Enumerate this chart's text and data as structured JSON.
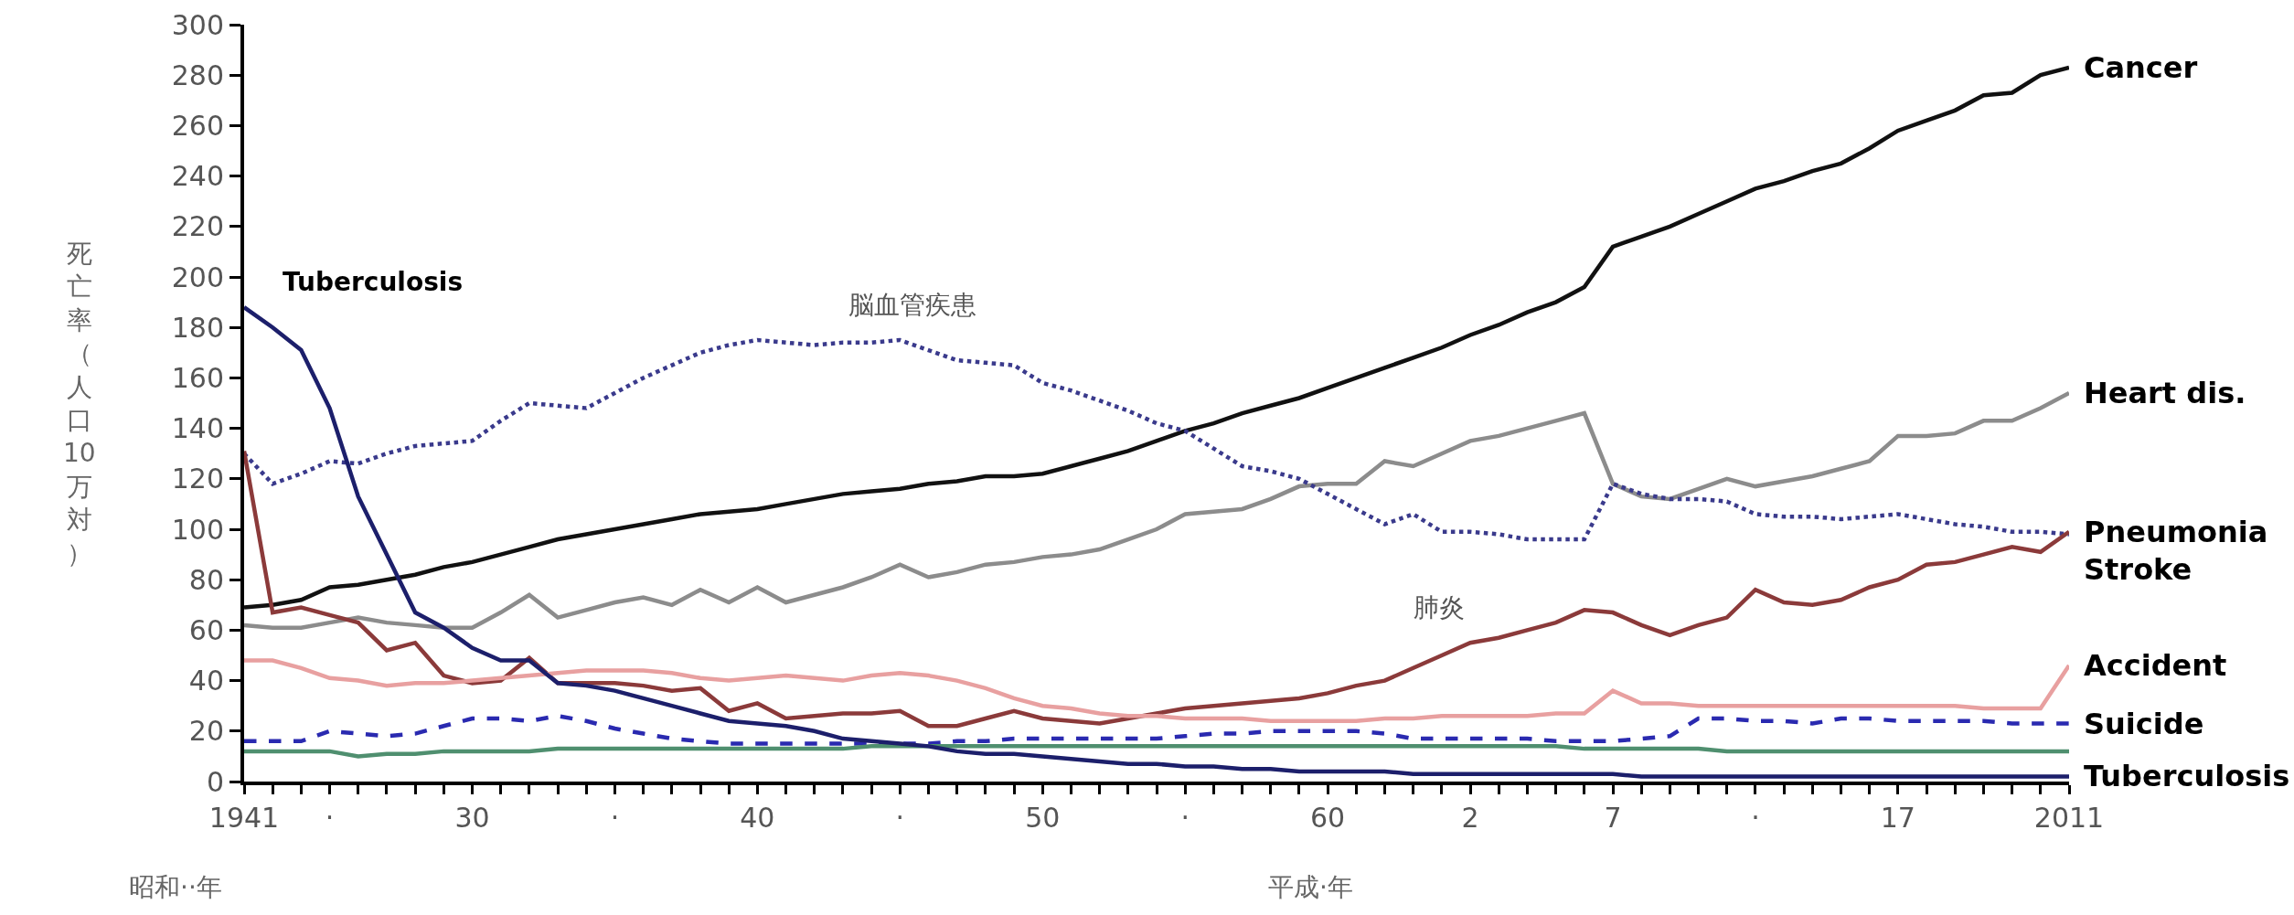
{
  "chart_data": {
    "type": "line",
    "ylabel": "死亡率（人口10万対）",
    "legend": false,
    "categories": [
      "1941",
      null,
      null,
      "·",
      null,
      null,
      null,
      null,
      "30",
      null,
      null,
      null,
      null,
      "·",
      null,
      null,
      null,
      null,
      "40",
      null,
      null,
      null,
      null,
      "·",
      null,
      null,
      null,
      null,
      "50",
      null,
      null,
      null,
      null,
      "·",
      null,
      null,
      null,
      null,
      "60",
      null,
      null,
      null,
      null,
      "2",
      null,
      null,
      null,
      null,
      "7",
      null,
      null,
      null,
      null,
      "·",
      null,
      null,
      null,
      null,
      "17",
      null,
      null,
      null,
      null,
      null,
      "2011"
    ],
    "ylim": [
      0,
      300
    ],
    "yticks": [
      0,
      20,
      40,
      60,
      80,
      100,
      120,
      140,
      160,
      180,
      200,
      220,
      240,
      260,
      280,
      300
    ],
    "annotations": [
      "昭和··年",
      "平成·年",
      "Tuberculosis",
      "脳血管疾患",
      "肺炎"
    ],
    "series": [
      {
        "name": "Cancer",
        "color": "#111111",
        "values": [
          69,
          70,
          72,
          77,
          78,
          80,
          82,
          85,
          87,
          90,
          93,
          96,
          98,
          100,
          102,
          104,
          106,
          107,
          108,
          110,
          112,
          114,
          115,
          116,
          118,
          119,
          121,
          121,
          122,
          125,
          128,
          131,
          135,
          139,
          142,
          146,
          149,
          152,
          156,
          160,
          164,
          168,
          172,
          177,
          181,
          186,
          190,
          196,
          212,
          216,
          220,
          225,
          230,
          235,
          238,
          242,
          245,
          251,
          258,
          262,
          266,
          272,
          273,
          280,
          283
        ]
      },
      {
        "name": "Heart dis.",
        "color": "#8c8c8c",
        "values": [
          62,
          61,
          61,
          63,
          65,
          63,
          62,
          61,
          61,
          67,
          74,
          65,
          68,
          71,
          73,
          70,
          76,
          71,
          77,
          71,
          74,
          77,
          81,
          86,
          81,
          83,
          86,
          87,
          89,
          90,
          92,
          96,
          100,
          106,
          107,
          108,
          112,
          117,
          118,
          118,
          127,
          125,
          130,
          135,
          137,
          140,
          143,
          146,
          118,
          113,
          112,
          116,
          120,
          117,
          119,
          121,
          124,
          127,
          137,
          137,
          138,
          143,
          143,
          148,
          154
        ]
      },
      {
        "name": "Stroke",
        "color": "#3a3a8c",
        "line_style": "dotted",
        "values": [
          130,
          118,
          122,
          127,
          126,
          130,
          133,
          134,
          135,
          143,
          150,
          149,
          148,
          154,
          160,
          165,
          170,
          173,
          175,
          174,
          173,
          174,
          174,
          175,
          171,
          167,
          166,
          165,
          158,
          155,
          151,
          147,
          142,
          139,
          132,
          125,
          123,
          120,
          114,
          108,
          102,
          106,
          99,
          99,
          98,
          96,
          96,
          96,
          118,
          114,
          112,
          112,
          111,
          106,
          105,
          105,
          104,
          105,
          106,
          104,
          102,
          101,
          99,
          99,
          98
        ]
      },
      {
        "name": "Pneumonia",
        "color": "#8b3a3a",
        "values": [
          131,
          67,
          69,
          66,
          63,
          52,
          55,
          42,
          39,
          40,
          49,
          39,
          39,
          39,
          38,
          36,
          37,
          28,
          31,
          25,
          26,
          27,
          27,
          28,
          22,
          22,
          25,
          28,
          25,
          24,
          23,
          25,
          27,
          29,
          30,
          31,
          32,
          33,
          35,
          38,
          40,
          45,
          50,
          55,
          57,
          60,
          63,
          68,
          67,
          62,
          58,
          62,
          65,
          76,
          71,
          70,
          72,
          77,
          80,
          86,
          87,
          90,
          93,
          91,
          99
        ]
      },
      {
        "name": "Accident",
        "color": "#e8a0a0",
        "values": [
          48,
          48,
          45,
          41,
          40,
          38,
          39,
          39,
          40,
          41,
          42,
          43,
          44,
          44,
          44,
          43,
          41,
          40,
          41,
          42,
          41,
          40,
          42,
          43,
          42,
          40,
          37,
          33,
          30,
          29,
          27,
          26,
          26,
          25,
          25,
          25,
          24,
          24,
          24,
          24,
          25,
          25,
          26,
          26,
          26,
          26,
          27,
          27,
          36,
          31,
          31,
          30,
          30,
          30,
          30,
          30,
          30,
          30,
          30,
          30,
          30,
          29,
          29,
          29,
          46
        ]
      },
      {
        "name": "Suicide",
        "color": "#2a2ab0",
        "line_style": "dashed",
        "values": [
          16,
          16,
          16,
          20,
          19,
          18,
          19,
          22,
          25,
          25,
          24,
          26,
          24,
          21,
          19,
          17,
          16,
          15,
          15,
          15,
          15,
          15,
          15,
          15,
          15,
          16,
          16,
          17,
          17,
          17,
          17,
          17,
          17,
          18,
          19,
          19,
          20,
          20,
          20,
          20,
          19,
          17,
          17,
          17,
          17,
          17,
          16,
          16,
          16,
          17,
          18,
          25,
          25,
          24,
          24,
          23,
          25,
          25,
          24,
          24,
          24,
          24,
          23,
          23,
          23
        ]
      },
      {
        "color": "#4f8f6f",
        "values": [
          12,
          12,
          12,
          12,
          10,
          11,
          11,
          12,
          12,
          12,
          12,
          13,
          13,
          13,
          13,
          13,
          13,
          13,
          13,
          13,
          13,
          13,
          14,
          14,
          14,
          14,
          14,
          14,
          14,
          14,
          14,
          14,
          14,
          14,
          14,
          14,
          14,
          14,
          14,
          14,
          14,
          14,
          14,
          14,
          14,
          14,
          14,
          13,
          13,
          13,
          13,
          13,
          12,
          12,
          12,
          12,
          12,
          12,
          12,
          12,
          12,
          12,
          12,
          12,
          12
        ]
      },
      {
        "name": "Tuberculosis",
        "color": "#1c1f6b",
        "values": [
          188,
          180,
          171,
          148,
          113,
          90,
          67,
          61,
          53,
          48,
          48,
          39,
          38,
          36,
          33,
          30,
          27,
          24,
          23,
          22,
          20,
          17,
          16,
          15,
          14,
          12,
          11,
          11,
          10,
          9,
          8,
          7,
          7,
          6,
          6,
          5,
          5,
          4,
          4,
          4,
          4,
          3,
          3,
          3,
          3,
          3,
          3,
          3,
          3,
          2,
          2,
          2,
          2,
          2,
          2,
          2,
          2,
          2,
          2,
          2,
          2,
          2,
          2,
          2,
          2
        ]
      }
    ]
  }
}
